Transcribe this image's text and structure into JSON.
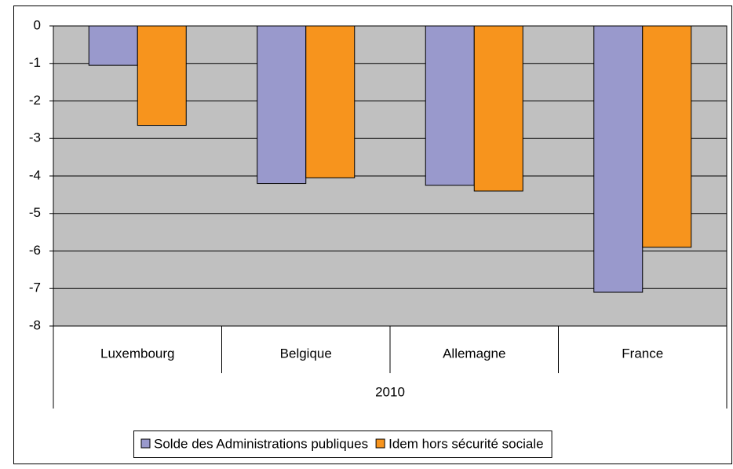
{
  "chart_data": {
    "type": "bar",
    "categories": [
      "Luxembourg",
      "Belgique",
      "Allemagne",
      "France"
    ],
    "group_label": "2010",
    "series": [
      {
        "name": "Solde des Administrations publiques",
        "color": "#9999cc",
        "values": [
          -1.05,
          -4.2,
          -4.25,
          -7.1
        ]
      },
      {
        "name": "Idem hors sécurité sociale",
        "color": "#f7941d",
        "values": [
          -2.65,
          -4.05,
          -4.4,
          -5.9
        ]
      }
    ],
    "ylim": [
      -8,
      0
    ],
    "yticks": [
      0,
      -1,
      -2,
      -3,
      -4,
      -5,
      -6,
      -7,
      -8
    ],
    "grid": true,
    "plot_background": "#c0c0c0",
    "legend": "bottom"
  }
}
